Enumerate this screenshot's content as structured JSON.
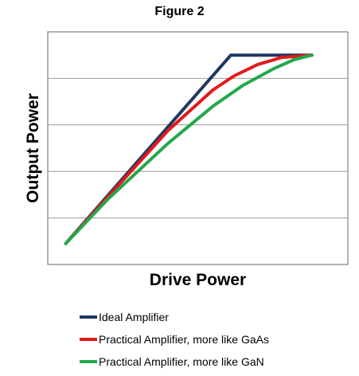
{
  "figure_title": "Figure 2",
  "chart_data": {
    "type": "line",
    "title": "Figure 2",
    "xlabel": "Drive Power",
    "ylabel": "Output Power",
    "xlim": [
      0,
      10
    ],
    "ylim": [
      0,
      10
    ],
    "y_gridlines": [
      2,
      4,
      6,
      8
    ],
    "grid": "horizontal",
    "legend_position": "bottom",
    "series": [
      {
        "name": "Ideal Amplifier",
        "color": "#1f3864",
        "points": [
          [
            0.6,
            0.9
          ],
          [
            6.1,
            9.0
          ],
          [
            8.8,
            9.0
          ]
        ]
      },
      {
        "name": "Practical Amplifier, more like GaAs",
        "color": "#e21a1a",
        "points": [
          [
            0.6,
            0.9
          ],
          [
            2.0,
            2.9
          ],
          [
            4.0,
            5.75
          ],
          [
            5.5,
            7.5
          ],
          [
            6.2,
            8.1
          ],
          [
            7.0,
            8.6
          ],
          [
            7.8,
            8.9
          ],
          [
            8.8,
            9.0
          ]
        ]
      },
      {
        "name": "Practical Amplifier, more like GaN",
        "color": "#22a84a",
        "points": [
          [
            0.6,
            0.9
          ],
          [
            2.0,
            2.8
          ],
          [
            4.0,
            5.2
          ],
          [
            5.5,
            6.8
          ],
          [
            6.5,
            7.7
          ],
          [
            7.5,
            8.4
          ],
          [
            8.2,
            8.8
          ],
          [
            8.8,
            9.0
          ]
        ]
      }
    ]
  }
}
